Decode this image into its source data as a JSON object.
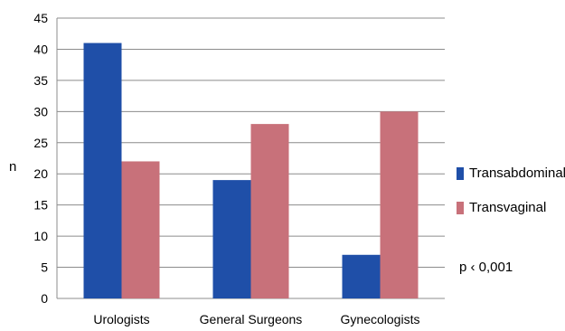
{
  "chart_data": {
    "type": "bar",
    "categories": [
      "Urologists",
      "General Surgeons",
      "Gynecologists"
    ],
    "series": [
      {
        "name": "Transabdominal",
        "values": [
          41,
          19,
          7
        ],
        "color": "#1f4fa8"
      },
      {
        "name": "Transvaginal",
        "values": [
          22,
          28,
          30
        ],
        "color": "#c8717a"
      }
    ],
    "ylabel": "n",
    "ylim": [
      0,
      45
    ],
    "yticks": [
      0,
      5,
      10,
      15,
      20,
      25,
      30,
      35,
      40,
      45
    ],
    "grid": true,
    "legend_position": "right",
    "annotation": "p ‹ 0,001"
  }
}
